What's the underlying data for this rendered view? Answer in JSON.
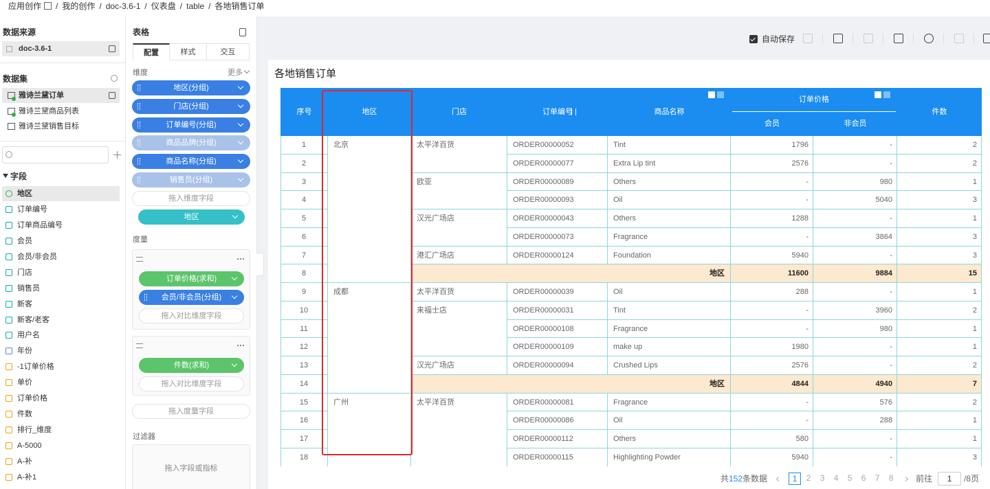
{
  "breadcrumb": {
    "items": [
      "应用创作",
      "我的创作",
      "doc-3.6-1",
      "仪表盘",
      "table",
      "各地销售订单"
    ],
    "separator": "/"
  },
  "datasource": {
    "title": "数据来源",
    "name": "doc-3.6-1"
  },
  "datasets": {
    "title": "数据集",
    "items": [
      "雅诗兰黛订单",
      "雅诗兰黛商品列表",
      "雅诗兰黛销售目标"
    ]
  },
  "fields": {
    "title": "字段",
    "items": [
      {
        "name": "地区",
        "type": "geo"
      },
      {
        "name": "订单编号",
        "type": "text"
      },
      {
        "name": "订单商品编号",
        "type": "text"
      },
      {
        "name": "会员",
        "type": "text"
      },
      {
        "name": "会员/非会员",
        "type": "text"
      },
      {
        "name": "门店",
        "type": "text"
      },
      {
        "name": "销售员",
        "type": "text"
      },
      {
        "name": "新客",
        "type": "text"
      },
      {
        "name": "新客/老客",
        "type": "text"
      },
      {
        "name": "用户名",
        "type": "text"
      },
      {
        "name": "年份",
        "type": "date"
      },
      {
        "name": "-1订单价格",
        "type": "number"
      },
      {
        "name": "单价",
        "type": "number"
      },
      {
        "name": "订单价格",
        "type": "number"
      },
      {
        "name": "件数",
        "type": "number"
      },
      {
        "name": "排行_维度",
        "type": "number"
      },
      {
        "name": "A-5000",
        "type": "number"
      },
      {
        "name": "A-补",
        "type": "number"
      },
      {
        "name": "A-补1",
        "type": "number"
      }
    ]
  },
  "config": {
    "title": "表格",
    "tabs": [
      "配置",
      "样式",
      "交互"
    ],
    "dimensions_title": "维度",
    "more": "更多",
    "dimensions": [
      {
        "label": "地区(分组)",
        "enabled": true
      },
      {
        "label": "门店(分组)",
        "enabled": true
      },
      {
        "label": "订单编号(分组)",
        "enabled": true
      },
      {
        "label": "商品品牌(分组)",
        "enabled": false
      },
      {
        "label": "商品名称(分组)",
        "enabled": true
      },
      {
        "label": "销售员(分组)",
        "enabled": false
      }
    ],
    "dimension_hint": "拖入维度字段",
    "selected_dimension": "地区",
    "measures_title": "度量",
    "measure_groups": [
      {
        "items": [
          {
            "label": "订单价格(求和)",
            "kind": "measure"
          },
          {
            "label": "会员/非会员(分组)",
            "kind": "dimension"
          }
        ],
        "hint": "拖入对比维度字段"
      },
      {
        "items": [
          {
            "label": "件数(求和)",
            "kind": "measure"
          }
        ],
        "hint": "拖入对比维度字段"
      }
    ],
    "measure_hint": "拖入度量字段",
    "filter_title": "过滤器",
    "filter_hint": "拖入字段或指标"
  },
  "toolbar": {
    "autosave": "自动保存",
    "autosave_checked": true
  },
  "report": {
    "title": "各地销售订单",
    "table": {
      "headers": [
        "序号",
        "地区",
        "门店",
        "订单编号",
        "商品名称",
        "会员",
        "非会员",
        "件数"
      ],
      "group_header": "订单价格",
      "rows": [
        {
          "cells": [
            1,
            "北京",
            "太平洋百货",
            "ORDER00000052",
            "Tint",
            1796,
            "-",
            2
          ]
        },
        {
          "cells": [
            2,
            null,
            null,
            "ORDER00000077",
            "Extra Lip tint",
            2576,
            "-",
            2
          ]
        },
        {
          "cells": [
            3,
            null,
            "欧亚",
            "ORDER00000089",
            "Others",
            "-",
            980,
            1
          ]
        },
        {
          "cells": [
            4,
            null,
            null,
            "ORDER00000093",
            "Oil",
            "-",
            5040,
            3
          ]
        },
        {
          "cells": [
            5,
            null,
            "汉光广场店",
            "ORDER00000043",
            "Others",
            1288,
            "-",
            1
          ]
        },
        {
          "cells": [
            6,
            null,
            null,
            "ORDER00000073",
            "Fragrance",
            "-",
            3864,
            3
          ]
        },
        {
          "cells": [
            7,
            null,
            "港汇广场店",
            "ORDER00000124",
            "Foundation",
            5940,
            "-",
            3
          ]
        },
        {
          "subtotal": true,
          "cells": [
            8,
            null,
            null,
            null,
            "地区",
            11600,
            9884,
            15
          ]
        },
        {
          "cells": [
            9,
            "成都",
            "太平洋百货",
            "ORDER00000039",
            "Oil",
            288,
            "-",
            1
          ]
        },
        {
          "cells": [
            10,
            null,
            "来福士店",
            "ORDER00000031",
            "Tint",
            "-",
            3960,
            2
          ]
        },
        {
          "cells": [
            11,
            null,
            null,
            "ORDER00000108",
            "Fragrance",
            "-",
            980,
            1
          ]
        },
        {
          "cells": [
            12,
            null,
            null,
            "ORDER00000109",
            "make up",
            1980,
            "-",
            1
          ]
        },
        {
          "cells": [
            13,
            null,
            "汉光广场店",
            "ORDER00000094",
            "Crushed Lips",
            2576,
            "-",
            2
          ]
        },
        {
          "subtotal": true,
          "cells": [
            14,
            null,
            null,
            null,
            "地区",
            4844,
            4940,
            7
          ]
        },
        {
          "cells": [
            15,
            "广州",
            "太平洋百货",
            "ORDER00000081",
            "Fragrance",
            "-",
            576,
            2
          ]
        },
        {
          "cells": [
            16,
            null,
            null,
            "ORDER00000086",
            "Oil",
            "-",
            288,
            1
          ]
        },
        {
          "cells": [
            17,
            null,
            null,
            "ORDER00000112",
            "Others",
            580,
            "-",
            1
          ]
        },
        {
          "cells": [
            18,
            null,
            null,
            "ORDER00000115",
            "Highlighting Powder",
            5940,
            "-",
            3
          ]
        }
      ]
    }
  },
  "pagination": {
    "prefix": "共",
    "total": 152,
    "suffix": "条数据",
    "pages": [
      1,
      2,
      3,
      4,
      5,
      6,
      7,
      8
    ],
    "current": 1,
    "goto": "前往",
    "goto_value": 1,
    "page_count_label": "/8页"
  }
}
